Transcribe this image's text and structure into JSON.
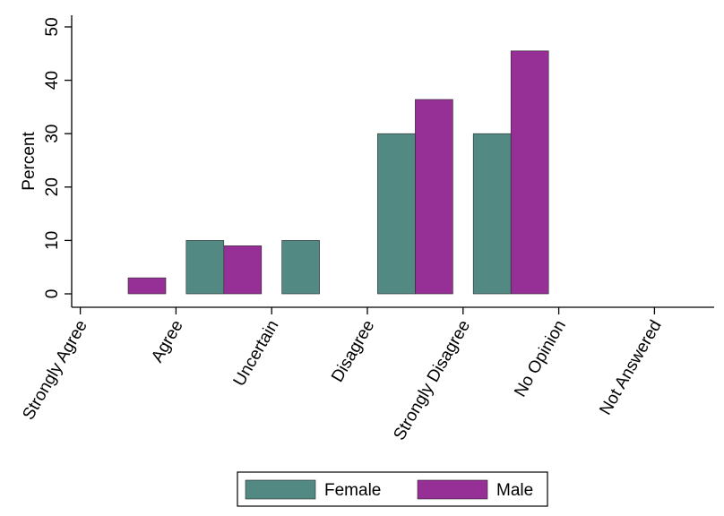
{
  "chart_data": {
    "type": "bar",
    "title": "",
    "xlabel": "",
    "ylabel": "Percent",
    "categories": [
      "Strongly Agree",
      "Agree",
      "Uncertain",
      "Disagree",
      "Strongly Disagree",
      "No Opinion",
      "Not Answered"
    ],
    "series": [
      {
        "name": "Female",
        "color": "#528982",
        "values": [
          0,
          10,
          10,
          30,
          30,
          0,
          0
        ]
      },
      {
        "name": "Male",
        "color": "#962f96",
        "values": [
          3,
          9,
          0,
          36.4,
          45.5,
          0,
          0
        ]
      }
    ],
    "yticks": [
      0,
      10,
      20,
      30,
      40,
      50
    ],
    "ylim": [
      0,
      50
    ],
    "grid": false,
    "legend_position": "bottom"
  }
}
